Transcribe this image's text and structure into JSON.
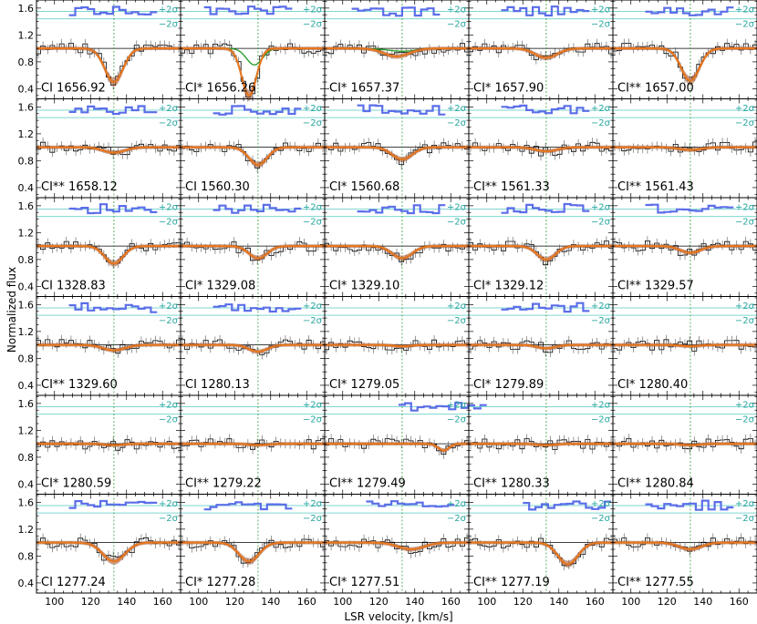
{
  "figure": {
    "xlabel": "LSR velocity, [km/s]",
    "ylabel": "Normalized flux",
    "band_plus": "+2σ",
    "band_minus": "−2σ"
  },
  "chart_data": {
    "type": "line",
    "xlim": [
      90,
      170
    ],
    "ylim": [
      0.25,
      1.72
    ],
    "x_ticks": [
      100,
      120,
      140,
      160
    ],
    "y_ticks": [
      0.4,
      0.8,
      1.2,
      1.6
    ],
    "reference_velocity": 133,
    "reference_flux": 1.0,
    "residual_band": {
      "plus_two_sigma": 1.55,
      "minus_two_sigma": 1.44
    },
    "colors": {
      "data": "#000000",
      "model": "#e8761b",
      "model_band": "#a0522d",
      "component": "#2ca02c",
      "residuals": "#5b6ee8",
      "sigma_lines": "#7fd6d0",
      "reference": "#3a9a3a"
    },
    "grid": false,
    "panels": [
      {
        "label": "CI 1656.92",
        "v0": 133,
        "depth": 0.5,
        "width": 10,
        "comp": false
      },
      {
        "label": "CI* 1656.26",
        "v0": 128,
        "depth": 0.7,
        "width": 8,
        "comp": true
      },
      {
        "label": "CI* 1657.37",
        "v0": 130,
        "depth": 0.12,
        "width": 14,
        "comp": true
      },
      {
        "label": "CI* 1657.90",
        "v0": 133,
        "depth": 0.14,
        "width": 12,
        "comp": false
      },
      {
        "label": "CI** 1657.00",
        "v0": 133,
        "depth": 0.48,
        "width": 10,
        "comp": false
      },
      {
        "label": "CI** 1658.12",
        "v0": 133,
        "depth": 0.08,
        "width": 12,
        "comp": false
      },
      {
        "label": "CI 1560.30",
        "v0": 133,
        "depth": 0.26,
        "width": 10,
        "comp": false
      },
      {
        "label": "CI* 1560.68",
        "v0": 133,
        "depth": 0.18,
        "width": 11,
        "comp": false
      },
      {
        "label": "CI** 1561.33",
        "v0": 133,
        "depth": 0.06,
        "width": 12,
        "comp": false
      },
      {
        "label": "CI** 1561.43",
        "v0": 133,
        "depth": 0.04,
        "width": 12,
        "comp": false
      },
      {
        "label": "CI 1328.83",
        "v0": 133,
        "depth": 0.26,
        "width": 10,
        "comp": false
      },
      {
        "label": "CI* 1329.08",
        "v0": 133,
        "depth": 0.18,
        "width": 10,
        "comp": false
      },
      {
        "label": "CI* 1329.10",
        "v0": 133,
        "depth": 0.18,
        "width": 11,
        "comp": false
      },
      {
        "label": "CI* 1329.12",
        "v0": 133,
        "depth": 0.2,
        "width": 10,
        "comp": false
      },
      {
        "label": "CI** 1329.57",
        "v0": 133,
        "depth": 0.1,
        "width": 11,
        "comp": false
      },
      {
        "label": "CI** 1329.60",
        "v0": 133,
        "depth": 0.08,
        "width": 12,
        "comp": false
      },
      {
        "label": "CI 1280.13",
        "v0": 133,
        "depth": 0.1,
        "width": 10,
        "comp": false
      },
      {
        "label": "CI* 1279.05",
        "v0": 133,
        "depth": 0.02,
        "width": 10,
        "comp": false
      },
      {
        "label": "CI* 1279.89",
        "v0": 133,
        "depth": 0.05,
        "width": 10,
        "comp": false
      },
      {
        "label": "CI* 1280.40",
        "v0": 133,
        "depth": 0.02,
        "width": 10,
        "comp": false
      },
      {
        "label": "CI* 1280.59",
        "v0": 133,
        "depth": 0.02,
        "width": 10,
        "comp": false
      },
      {
        "label": "CI** 1279.22",
        "v0": 133,
        "depth": 0.02,
        "width": 10,
        "comp": false
      },
      {
        "label": "CI** 1279.49",
        "v0": 156,
        "depth": 0.1,
        "width": 6,
        "comp": false
      },
      {
        "label": "CI** 1280.33",
        "v0": 133,
        "depth": 0.02,
        "width": 10,
        "comp": false
      },
      {
        "label": "CI** 1280.84",
        "v0": 133,
        "depth": 0.02,
        "width": 10,
        "comp": false
      },
      {
        "label": "CI 1277.24",
        "v0": 133,
        "depth": 0.28,
        "width": 12,
        "comp": false
      },
      {
        "label": "CI* 1277.28",
        "v0": 128,
        "depth": 0.28,
        "width": 11,
        "comp": false
      },
      {
        "label": "CI* 1277.51",
        "v0": 138,
        "depth": 0.1,
        "width": 14,
        "comp": false
      },
      {
        "label": "CI** 1277.19",
        "v0": 145,
        "depth": 0.32,
        "width": 11,
        "comp": false
      },
      {
        "label": "CI** 1277.55",
        "v0": 133,
        "depth": 0.1,
        "width": 12,
        "comp": false
      }
    ]
  }
}
